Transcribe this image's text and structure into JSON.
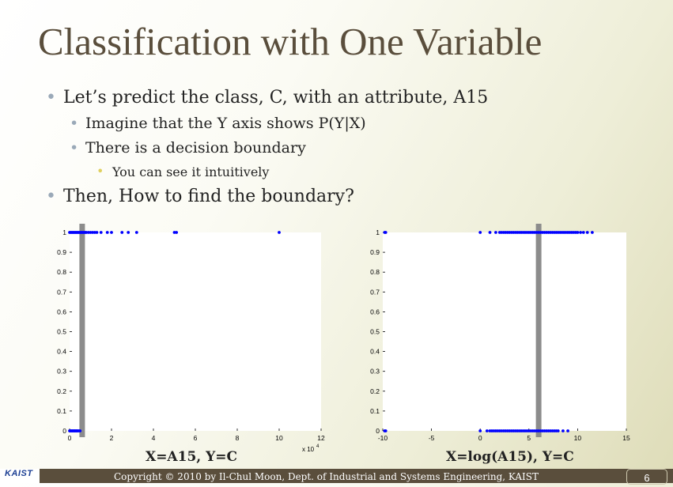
{
  "slide": {
    "title": "Classification with One Variable",
    "bullets": {
      "b1": "Let’s predict the class, C, with an attribute, A15",
      "b1_1": "Imagine that the Y axis shows P(Y|X)",
      "b1_2": "There is a decision boundary",
      "b1_2_1": "You can see it intuitively",
      "b2": "Then, How to find the boundary?"
    },
    "bullet_glyph": "•"
  },
  "chart_data": [
    {
      "type": "scatter",
      "caption": "X=A15, Y=C",
      "xlim": [
        0,
        12
      ],
      "ylim": [
        0,
        1
      ],
      "xticks": [
        "0",
        "2",
        "4",
        "6",
        "8",
        "10",
        "12"
      ],
      "yticks": [
        "0",
        "0.1",
        "0.2",
        "0.3",
        "0.4",
        "0.5",
        "0.6",
        "0.7",
        "0.8",
        "0.9",
        "1"
      ],
      "x_multiplier": "x 10",
      "x_multiplier_exp": "4",
      "boundary_x": 0.6,
      "point_color": "#0000ff",
      "boundary_color": "#8c8c8c",
      "series": [
        {
          "y": 1,
          "x": [
            0,
            0.05,
            0.1,
            0.15,
            0.2,
            0.25,
            0.3,
            0.35,
            0.4,
            0.45,
            0.5,
            0.55,
            0.6,
            0.65,
            0.7,
            0.75,
            0.8,
            0.9,
            1.0,
            1.1,
            1.2,
            1.3,
            1.5,
            1.8,
            2.0,
            2.5,
            2.8,
            3.2,
            5.0,
            5.1,
            10.0
          ]
        },
        {
          "y": 0,
          "x": [
            0,
            0.03,
            0.06,
            0.1,
            0.13,
            0.16,
            0.2,
            0.23,
            0.26,
            0.3,
            0.33,
            0.36,
            0.4,
            0.45,
            0.5
          ]
        }
      ]
    },
    {
      "type": "scatter",
      "caption": "X=log(A15), Y=C",
      "xlim": [
        -10,
        15
      ],
      "ylim": [
        0,
        1
      ],
      "xticks": [
        "-10",
        "-5",
        "0",
        "5",
        "10",
        "15"
      ],
      "yticks": [
        "0",
        "0.1",
        "0.2",
        "0.3",
        "0.4",
        "0.5",
        "0.6",
        "0.7",
        "0.8",
        "0.9",
        "1"
      ],
      "boundary_x": 6.0,
      "point_color": "#0000ff",
      "boundary_color": "#8c8c8c",
      "series": [
        {
          "y": 1,
          "x": [
            -9.8,
            -9.7,
            0,
            1.0,
            1.6,
            2.0,
            2.2,
            2.4,
            2.6,
            2.8,
            3.0,
            3.2,
            3.4,
            3.6,
            3.8,
            4.0,
            4.2,
            4.4,
            4.6,
            4.8,
            5.0,
            5.2,
            5.4,
            5.6,
            5.8,
            6.0,
            6.2,
            6.4,
            6.6,
            6.8,
            7.0,
            7.2,
            7.4,
            7.6,
            7.8,
            8.0,
            8.2,
            8.4,
            8.6,
            8.8,
            9.0,
            9.2,
            9.4,
            9.6,
            9.8,
            10.0,
            10.3,
            10.6,
            11.0,
            11.5
          ]
        },
        {
          "y": 0,
          "x": [
            -9.8,
            -9.7,
            0,
            0.7,
            1.0,
            1.2,
            1.4,
            1.6,
            1.8,
            2.0,
            2.2,
            2.4,
            2.6,
            2.8,
            3.0,
            3.2,
            3.4,
            3.6,
            3.8,
            4.0,
            4.2,
            4.4,
            4.6,
            4.8,
            5.0,
            5.2,
            5.4,
            5.6,
            5.8,
            6.0,
            6.2,
            6.4,
            6.6,
            6.8,
            7.0,
            7.2,
            7.4,
            7.6,
            7.8,
            8.0,
            8.5,
            9.0
          ]
        }
      ]
    }
  ],
  "footer": {
    "logo_text": "KAIST",
    "copyright": "Copyright © 2010 by Il-Chul Moon, Dept. of Industrial and Systems Engineering, KAIST",
    "page_number": "6"
  }
}
